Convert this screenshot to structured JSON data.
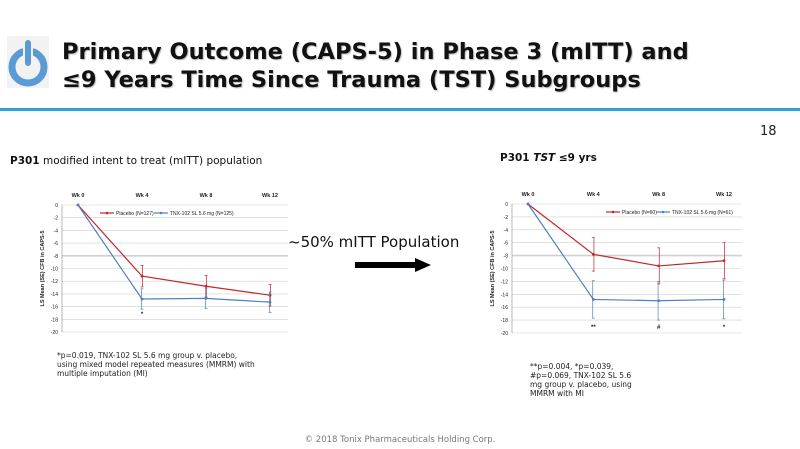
{
  "header": {
    "title_line1": "Primary Outcome (CAPS-5) in Phase 3 (mITT) and",
    "title_line2": "≤9 Years Time Since Trauma (TST) Subgroups",
    "page_number": "18",
    "logo_icon": "power-button-icon",
    "accent_color": "#2fa3d6"
  },
  "left": {
    "subtitle_bold": "P301",
    "subtitle_rest": " modified intent to treat (mITT) population",
    "footnote": "*p=0.019, TNX-102 SL 5.6 mg group v. placebo, using mixed model repeated measures (MMRM) with multiple imputation (MI)"
  },
  "right": {
    "subtitle_bold": "P301 ",
    "subtitle_italic": "TST",
    "subtitle_rest": " ≤9 yrs",
    "footnote": "**p=0.004, *p=0.039, #p=0.069, TNX-102 SL 5.6 mg group v. placebo, using MMRM with MI"
  },
  "middle": {
    "label": "~50% mITT Population",
    "arrow_icon": "right-arrow-icon"
  },
  "footer": {
    "copyright": "© 2018 Tonix Pharmaceuticals Holding Corp."
  },
  "chart_data": [
    {
      "type": "line",
      "categories": [
        "Wk 0",
        "Wk 4",
        "Wk 8",
        "Wk 12"
      ],
      "ylabel": "LS Mean (SE) CFB in CAPS-5",
      "ylim": [
        -20,
        0
      ],
      "yticks": [
        0,
        -2,
        -4,
        -6,
        -8,
        -10,
        -12,
        -14,
        -16,
        -18,
        -20
      ],
      "grid": true,
      "legend": "top-right",
      "series": [
        {
          "name": "Placebo (N=127)",
          "color": "#c0282d",
          "values": [
            0,
            -11.2,
            -12.8,
            -14.2
          ],
          "se": [
            0,
            1.7,
            1.7,
            1.7
          ]
        },
        {
          "name": "TNX-102 SL 5.6 mg (N=125)",
          "color": "#4f81bd",
          "values": [
            0,
            -14.8,
            -14.7,
            -15.3
          ],
          "se": [
            0,
            1.6,
            1.6,
            1.6
          ]
        }
      ],
      "annotations": [
        "",
        "*",
        "",
        ""
      ]
    },
    {
      "type": "line",
      "categories": [
        "Wk 0",
        "Wk 4",
        "Wk 8",
        "Wk 12"
      ],
      "ylabel": "LS Mean (SE) CFB in CAPS-5",
      "ylim": [
        -20,
        0
      ],
      "yticks": [
        0,
        -2,
        -4,
        -6,
        -8,
        -10,
        -12,
        -14,
        -16,
        -18,
        -20
      ],
      "grid": true,
      "legend": "top-right",
      "series": [
        {
          "name": "Placebo (N=60)",
          "color": "#c0282d",
          "values": [
            0,
            -7.8,
            -9.6,
            -8.8
          ],
          "se": [
            0,
            2.6,
            2.8,
            2.8
          ]
        },
        {
          "name": "TNX-102 SL 5.6 mg (N=61)",
          "color": "#4f81bd",
          "values": [
            0,
            -14.8,
            -15.0,
            -14.8
          ],
          "se": [
            0,
            2.9,
            3.0,
            3.0
          ]
        }
      ],
      "annotations": [
        "",
        "**",
        "#",
        "*"
      ]
    }
  ]
}
